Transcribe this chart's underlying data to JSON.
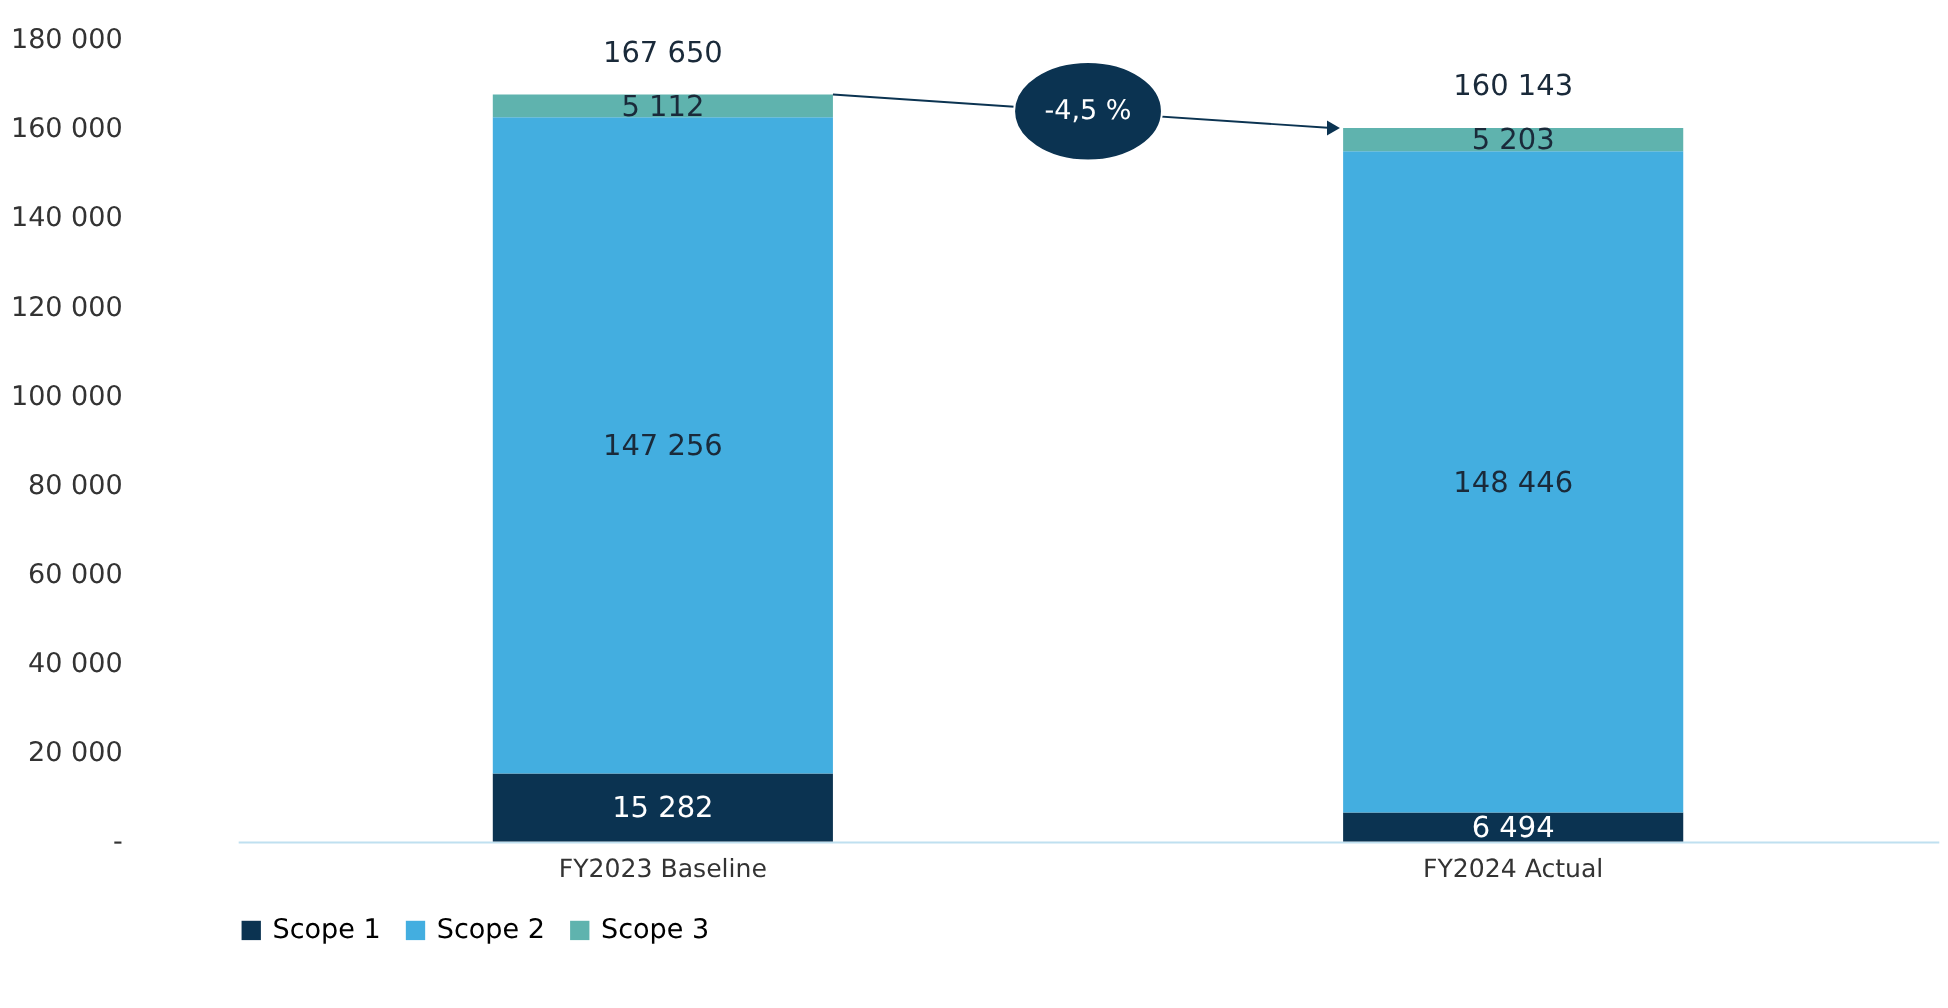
{
  "chart_data": {
    "type": "bar",
    "stacked": true,
    "categories": [
      "FY2023 Baseline",
      "FY2024 Actual"
    ],
    "series": [
      {
        "name": "Scope 1",
        "color": "#0b3351",
        "values": [
          15282,
          6494
        ],
        "value_labels": [
          "15 282",
          "6 494"
        ]
      },
      {
        "name": "Scope 2",
        "color": "#43aee0",
        "values": [
          147256,
          148446
        ],
        "value_labels": [
          "147 256",
          "148 446"
        ]
      },
      {
        "name": "Scope 3",
        "color": "#5fb3ae",
        "values": [
          5112,
          5203
        ],
        "value_labels": [
          "5 112",
          "5 203"
        ]
      }
    ],
    "totals": [
      "167 650",
      "160 143"
    ],
    "annotations": [
      "-4,5 %"
    ],
    "ylim": [
      0,
      180000
    ],
    "yticks": [
      {
        "value": 0,
        "label": "-"
      },
      {
        "value": 20000,
        "label": "20 000"
      },
      {
        "value": 40000,
        "label": "40 000"
      },
      {
        "value": 60000,
        "label": "60 000"
      },
      {
        "value": 80000,
        "label": "80 000"
      },
      {
        "value": 100000,
        "label": "100 000"
      },
      {
        "value": 120000,
        "label": "120 000"
      },
      {
        "value": 140000,
        "label": "140 000"
      },
      {
        "value": 160000,
        "label": "160 000"
      },
      {
        "value": 180000,
        "label": "180 000"
      }
    ],
    "grid": false,
    "legend": "bottom"
  }
}
